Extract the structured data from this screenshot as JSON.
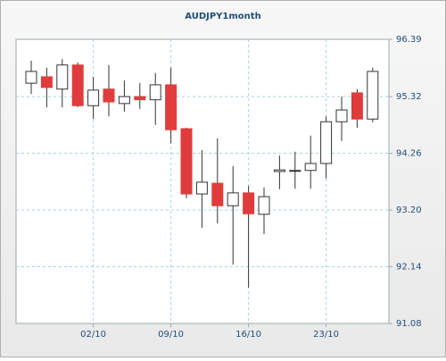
{
  "chart_data": {
    "type": "candlestick",
    "title": "AUDJPY1month",
    "categories": [
      null,
      null,
      null,
      null,
      "02/10",
      null,
      null,
      null,
      null,
      "09/10",
      null,
      null,
      null,
      null,
      "16/10",
      null,
      null,
      null,
      null,
      "23/10",
      null,
      null,
      null
    ],
    "series": [
      {
        "name": "open",
        "values": [
          95.57,
          95.69,
          95.46,
          95.91,
          95.15,
          95.46,
          95.19,
          95.32,
          95.26,
          95.54,
          94.72,
          93.5,
          93.7,
          93.28,
          93.52,
          93.12,
          93.92,
          93.93,
          93.94,
          94.07,
          94.85,
          95.39,
          94.9
        ]
      },
      {
        "name": "high",
        "values": [
          95.99,
          95.86,
          96.02,
          95.96,
          95.69,
          95.91,
          95.62,
          95.57,
          95.76,
          95.86,
          94.74,
          94.32,
          94.54,
          94.02,
          93.65,
          93.62,
          94.22,
          94.29,
          94.59,
          94.95,
          95.32,
          95.46,
          95.86
        ]
      },
      {
        "name": "low",
        "values": [
          95.37,
          95.12,
          95.12,
          95.12,
          94.9,
          94.95,
          95.04,
          95.09,
          94.79,
          94.45,
          93.42,
          92.87,
          92.95,
          92.18,
          91.75,
          92.75,
          93.59,
          93.6,
          93.6,
          93.79,
          94.49,
          94.74,
          94.84
        ]
      },
      {
        "name": "close",
        "values": [
          95.79,
          95.49,
          95.91,
          95.15,
          95.44,
          95.22,
          95.32,
          95.26,
          95.54,
          94.7,
          93.5,
          93.72,
          93.28,
          93.52,
          93.13,
          93.45,
          93.95,
          93.94,
          94.07,
          94.85,
          95.07,
          94.9,
          95.79
        ]
      }
    ],
    "up_color": "#ffffff",
    "down_color": "#e03c3c",
    "ylim": [
      91.08,
      96.39
    ],
    "yticks": [
      91.08,
      92.14,
      {
        "value": 93.2,
        "label": "93.20"
      },
      94.26,
      95.32,
      96.39
    ],
    "grid": true
  }
}
